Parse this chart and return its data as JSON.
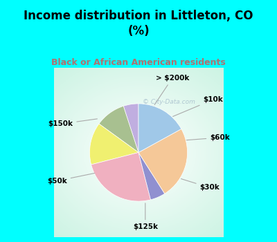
{
  "title": "Income distribution in Littleton, CO\n(%)",
  "subtitle": "Black or African American residents",
  "background_top": "#00FFFF",
  "labels": [
    "> $200k",
    "$10k",
    "$60k",
    "$30k",
    "$125k",
    "$50k",
    "$150k"
  ],
  "values": [
    5,
    10,
    14,
    25,
    5,
    24,
    17
  ],
  "colors": [
    "#c0aee0",
    "#a8c090",
    "#f0f070",
    "#f0b0c0",
    "#9090d0",
    "#f5c898",
    "#a0c8e8"
  ],
  "startangle": 90,
  "watermark": "© City-Data.com",
  "subtitle_color": "#b07070"
}
